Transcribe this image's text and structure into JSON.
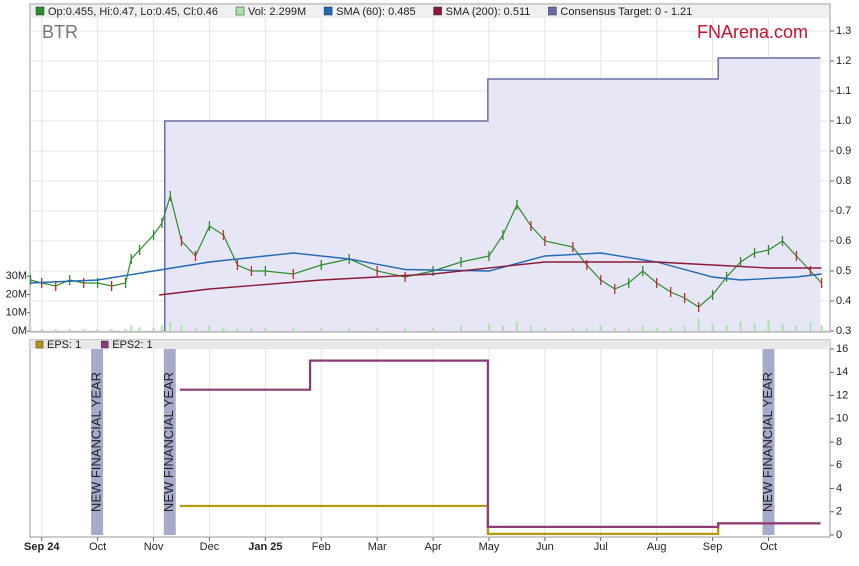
{
  "chart_data": [
    {
      "type": "stock",
      "title": "BTR",
      "brand": "FNArena.com",
      "xlim": [
        -0.21,
        14.1
      ],
      "ylim": [
        0.3,
        1.39
      ],
      "yticks": [
        0.3,
        0.4,
        0.5,
        0.6,
        0.7,
        0.8,
        0.9,
        {
          "value": 1,
          "label": "1.0"
        },
        1.1,
        1.2,
        1.3
      ],
      "y2lim": [
        0,
        179
      ],
      "y2ticks": [
        {
          "value": 0,
          "label": "0M"
        },
        {
          "value": 10,
          "label": "10M"
        },
        {
          "value": 20,
          "label": "20M"
        },
        {
          "value": 30,
          "label": "30M"
        }
      ],
      "grid": true,
      "series": [
        {
          "name": "Op:0.455, Hi:0.47, Lo:0.45, Cl:0.46",
          "color": "#2e8b2e",
          "kind": "price",
          "x": [
            -0.2,
            0,
            0.25,
            0.5,
            0.75,
            1,
            1.25,
            1.5,
            1.6,
            1.75,
            2,
            2.15,
            2.3,
            2.5,
            2.75,
            3,
            3.25,
            3.5,
            3.75,
            4,
            4.5,
            5,
            5.5,
            6,
            6.5,
            7,
            7.5,
            8,
            8.25,
            8.5,
            8.75,
            9,
            9.5,
            9.75,
            10,
            10.25,
            10.5,
            10.75,
            11,
            11.25,
            11.5,
            11.75,
            12,
            12.25,
            12.5,
            12.75,
            13,
            13.25,
            13.5,
            13.75,
            13.95
          ],
          "values": [
            0.47,
            0.46,
            0.45,
            0.47,
            0.46,
            0.46,
            0.45,
            0.46,
            0.54,
            0.57,
            0.62,
            0.66,
            0.75,
            0.6,
            0.55,
            0.65,
            0.62,
            0.52,
            0.5,
            0.5,
            0.49,
            0.52,
            0.54,
            0.5,
            0.48,
            0.5,
            0.53,
            0.55,
            0.62,
            0.72,
            0.65,
            0.6,
            0.58,
            0.52,
            0.47,
            0.44,
            0.46,
            0.5,
            0.46,
            0.43,
            0.41,
            0.38,
            0.42,
            0.48,
            0.53,
            0.56,
            0.57,
            0.6,
            0.55,
            0.5,
            0.46
          ]
        },
        {
          "name": "Vol: 2.299M",
          "color": "#a8e6a8",
          "kind": "volume",
          "axis": "y2",
          "x": [
            -0.2,
            0,
            0.25,
            0.5,
            0.75,
            1,
            1.25,
            1.5,
            1.6,
            1.75,
            2,
            2.15,
            2.3,
            2.5,
            2.75,
            3,
            3.25,
            3.5,
            3.75,
            4,
            4.5,
            5,
            5.5,
            6,
            6.5,
            7,
            7.5,
            8,
            8.25,
            8.5,
            8.75,
            9,
            9.5,
            9.75,
            10,
            10.25,
            10.5,
            10.75,
            11,
            11.25,
            11.5,
            11.75,
            12,
            12.25,
            12.5,
            12.75,
            13,
            13.25,
            13.5,
            13.75,
            13.95
          ],
          "values": [
            1,
            1,
            1,
            1,
            1,
            1,
            1,
            1,
            3,
            2,
            2,
            3,
            5,
            3,
            2,
            3,
            2,
            2,
            2,
            2,
            2,
            2,
            2,
            2,
            2,
            2,
            3,
            4,
            3,
            5,
            3,
            2,
            2,
            2,
            3,
            2,
            2,
            3,
            2,
            2,
            3,
            7,
            4,
            3,
            5,
            4,
            6,
            4,
            3,
            5,
            3
          ]
        },
        {
          "name": "SMA (60): 0.485",
          "color": "#2369b4",
          "kind": "line",
          "x": [
            -0.2,
            1,
            2,
            3,
            4,
            4.5,
            5.5,
            6.5,
            8,
            9,
            10,
            11,
            12,
            12.5,
            13.5,
            13.95
          ],
          "values": [
            0.46,
            0.47,
            0.5,
            0.53,
            0.55,
            0.56,
            0.54,
            0.505,
            0.5,
            0.55,
            0.56,
            0.53,
            0.48,
            0.47,
            0.48,
            0.49
          ]
        },
        {
          "name": "SMA (200): 0.511",
          "color": "#8b1a3a",
          "kind": "line",
          "x": [
            2.1,
            3,
            5,
            7,
            9,
            10,
            11,
            12,
            13,
            13.95
          ],
          "values": [
            0.42,
            0.44,
            0.47,
            0.49,
            0.53,
            0.53,
            0.53,
            0.52,
            0.51,
            0.51
          ]
        },
        {
          "name": "Consensus Target: 0 - 1.21",
          "color": "#6a6aa6",
          "kind": "area",
          "x": [
            2.2,
            2.2,
            7.98,
            7.98,
            12.1,
            12.1,
            13.93
          ],
          "values": [
            0.3,
            1,
            1,
            1.14,
            1.14,
            1.21,
            1.21
          ]
        }
      ]
    },
    {
      "type": "line",
      "xlim": [
        -0.21,
        14.1
      ],
      "ylim": [
        0,
        16
      ],
      "yticks": [
        0,
        2,
        4,
        6,
        8,
        10,
        12,
        14,
        16
      ],
      "xticks": [
        {
          "value": 0,
          "label": "Sep 24"
        },
        {
          "value": 1,
          "label": "Oct"
        },
        {
          "value": 2,
          "label": "Nov"
        },
        {
          "value": 3,
          "label": "Dec"
        },
        {
          "value": 4,
          "label": "Jan 25"
        },
        {
          "value": 5,
          "label": "Feb"
        },
        {
          "value": 6,
          "label": "Mar"
        },
        {
          "value": 7,
          "label": "Apr"
        },
        {
          "value": 8,
          "label": "May"
        },
        {
          "value": 9,
          "label": "Jun"
        },
        {
          "value": 10,
          "label": "Jul"
        },
        {
          "value": 11,
          "label": "Aug"
        },
        {
          "value": 12,
          "label": "Sep"
        },
        {
          "value": 13,
          "label": "Oct"
        }
      ],
      "grid": true,
      "annotations": [
        {
          "x": 0.99,
          "text": "NEW FINANCIAL YEAR"
        },
        {
          "x": 2.29,
          "text": "NEW FINANCIAL YEAR"
        },
        {
          "x": 13,
          "text": "NEW FINANCIAL YEAR"
        }
      ],
      "series": [
        {
          "name": "EPS: 1",
          "color": "#b8960c",
          "x": [
            2.47,
            7.98,
            7.98,
            12.1,
            12.1,
            13.93
          ],
          "values": [
            2.5,
            2.5,
            0.1,
            0.1,
            1,
            1
          ]
        },
        {
          "name": "EPS2: 1",
          "color": "#8e3a78",
          "x": [
            2.47,
            4.8,
            4.8,
            7.98,
            7.98,
            12.1,
            12.1,
            13.93
          ],
          "values": [
            12.5,
            12.5,
            15,
            15,
            0.7,
            0.7,
            1,
            1
          ]
        }
      ]
    }
  ]
}
